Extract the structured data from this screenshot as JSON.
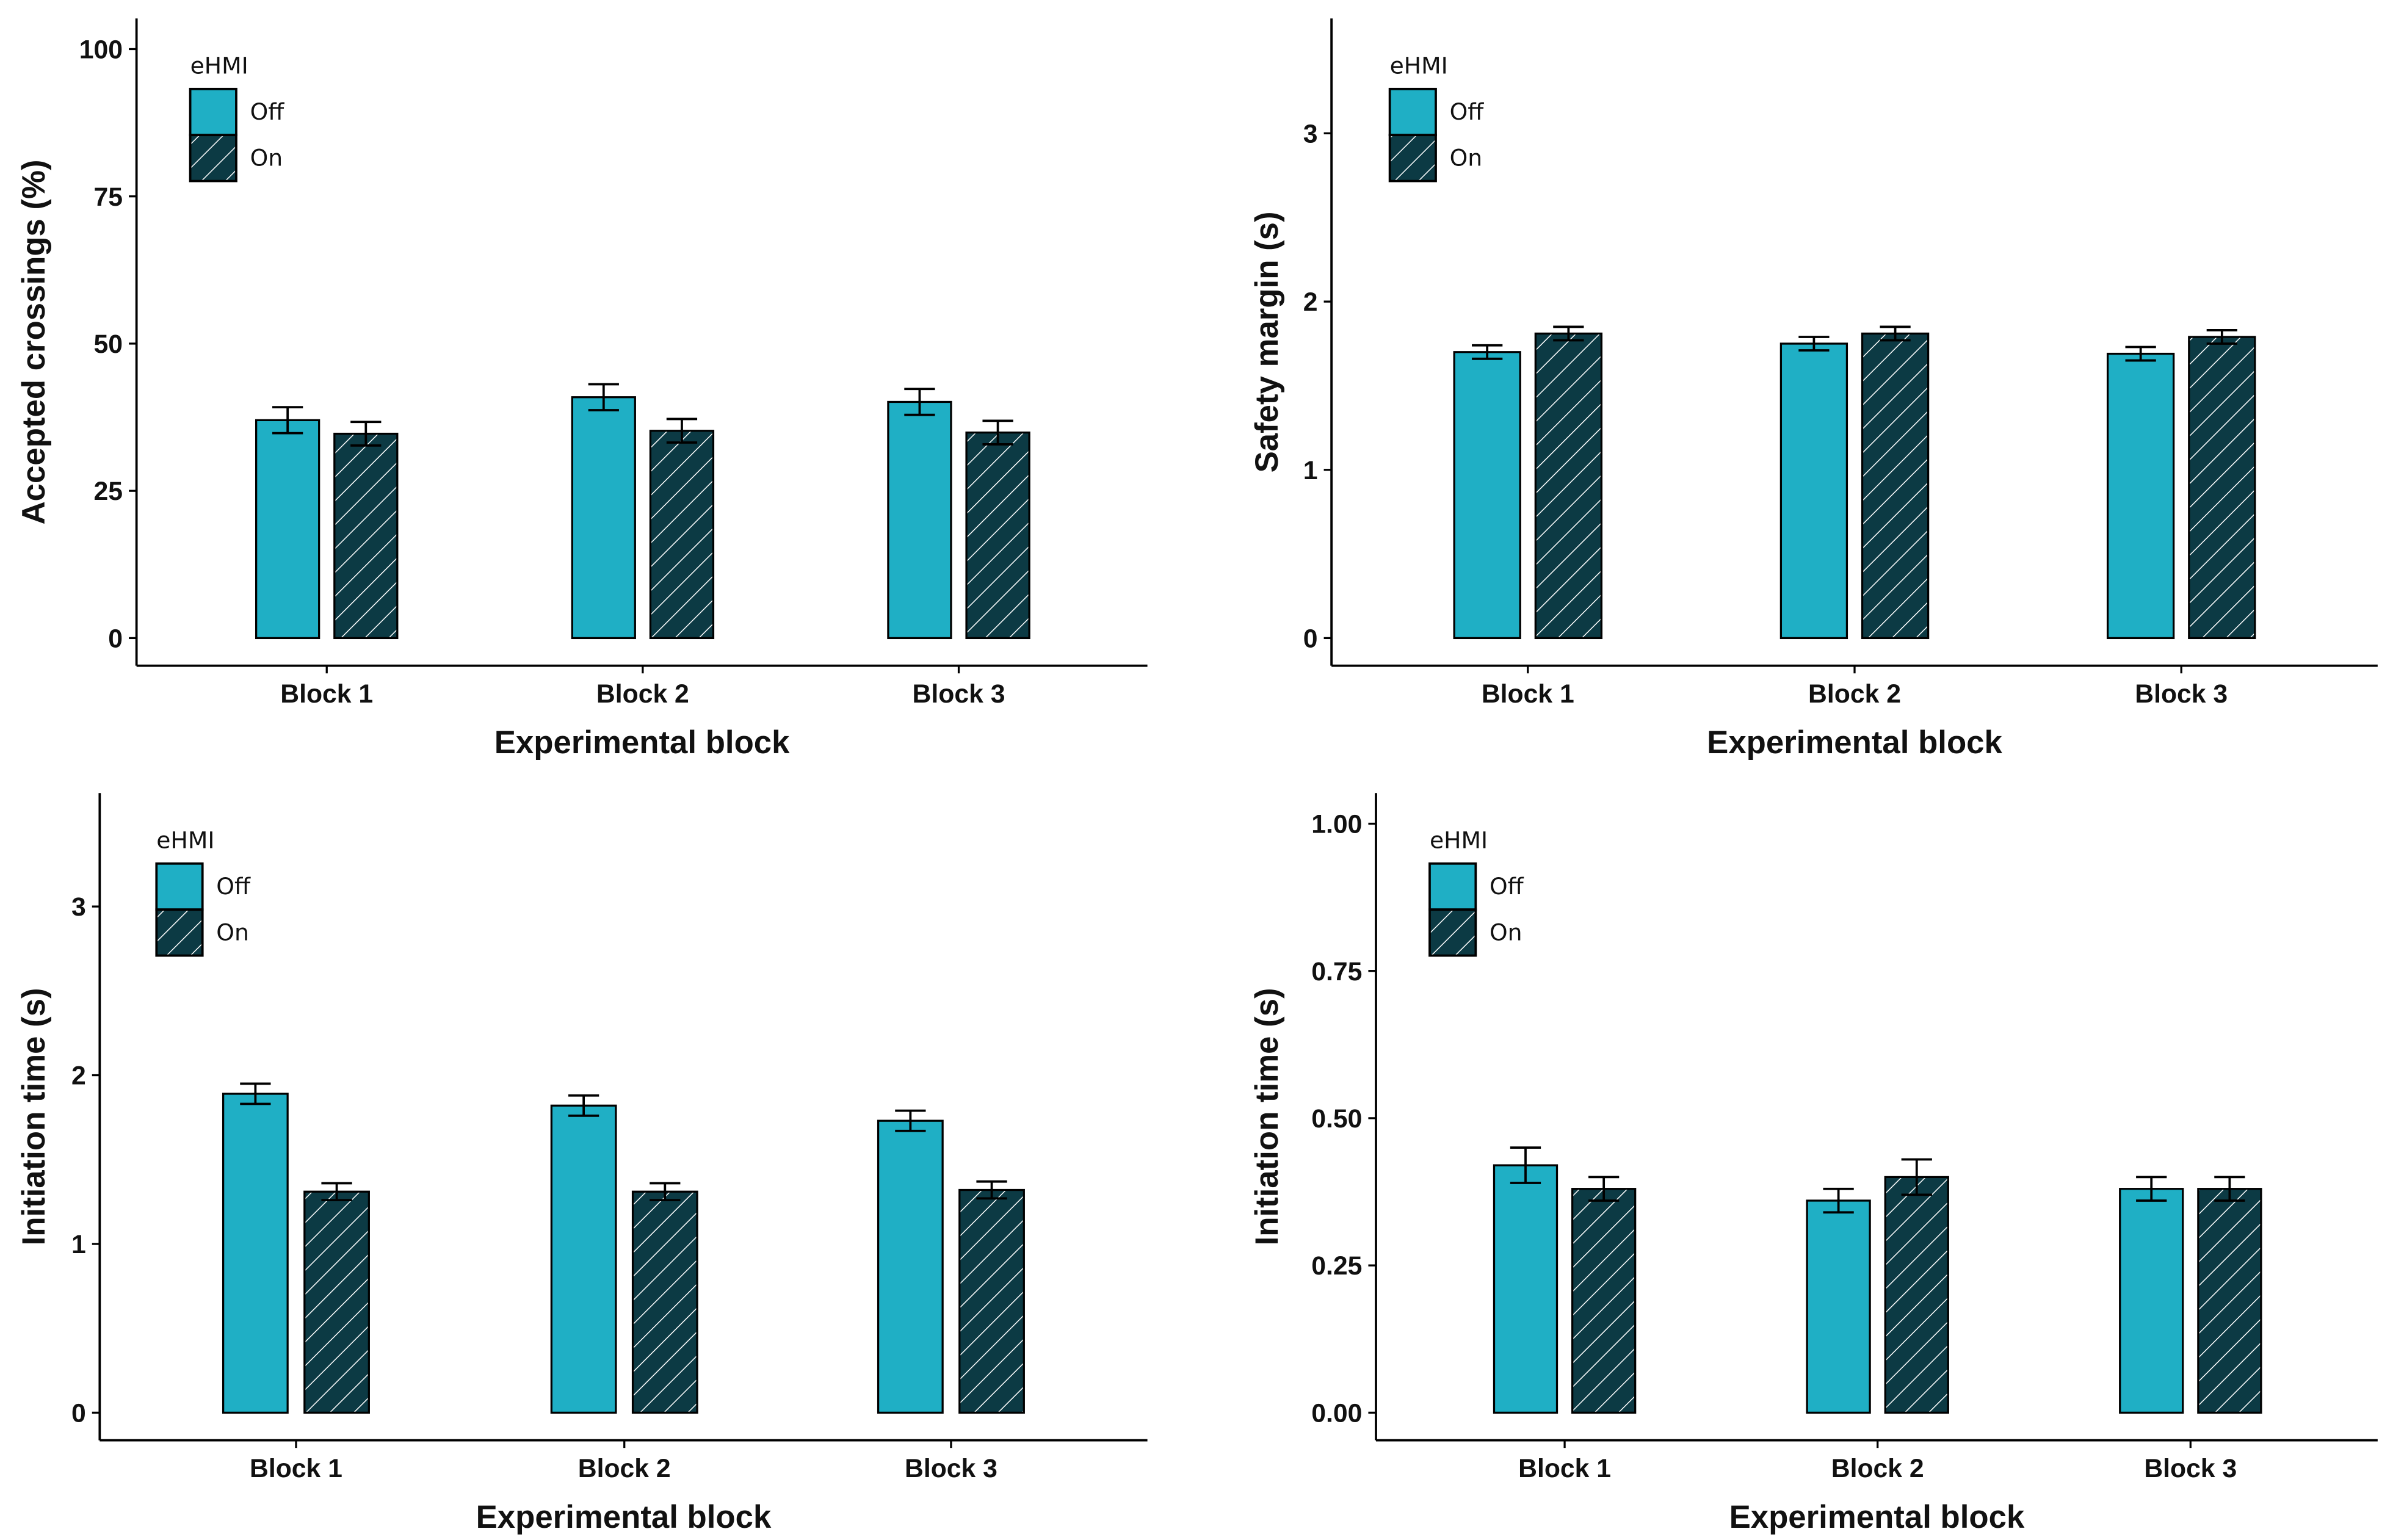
{
  "legend": {
    "title": "eHMI",
    "levels": [
      "Off",
      "On"
    ]
  },
  "colors": {
    "off": "#1fafc5",
    "on": "#0c3a44",
    "hatch": "#ffffff",
    "outline": "#000000"
  },
  "chart_data": [
    {
      "type": "bar",
      "xlabel": "Experimental block",
      "ylabel": "Accepted crossings (%)",
      "categories": [
        "Block 1",
        "Block 2",
        "Block 3"
      ],
      "yticks": [
        0,
        25,
        50,
        75,
        100
      ],
      "ytick_labels": [
        "0",
        "25",
        "50",
        "75",
        "100"
      ],
      "ylim": [
        0,
        105
      ],
      "legend_position": "top-left",
      "series": [
        {
          "name": "Off",
          "values": [
            37.0,
            40.9,
            40.1
          ],
          "errors": [
            2.2,
            2.2,
            2.2
          ]
        },
        {
          "name": "On",
          "values": [
            34.7,
            35.2,
            34.9
          ],
          "errors": [
            2.0,
            2.0,
            2.0
          ]
        }
      ]
    },
    {
      "type": "bar",
      "xlabel": "Experimental block",
      "ylabel": "Safety margin (s)",
      "categories": [
        "Block 1",
        "Block 2",
        "Block 3"
      ],
      "yticks": [
        0,
        1,
        2,
        3
      ],
      "ytick_labels": [
        "0",
        "1",
        "2",
        "3"
      ],
      "ylim": [
        0,
        3.68
      ],
      "legend_position": "top-left",
      "series": [
        {
          "name": "Off",
          "values": [
            1.7,
            1.75,
            1.69
          ],
          "errors": [
            0.04,
            0.04,
            0.04
          ]
        },
        {
          "name": "On",
          "values": [
            1.81,
            1.81,
            1.79
          ],
          "errors": [
            0.04,
            0.04,
            0.04
          ]
        }
      ]
    },
    {
      "type": "bar",
      "xlabel": "Experimental block",
      "ylabel": "Initiation time (s)",
      "categories": [
        "Block 1",
        "Block 2",
        "Block 3"
      ],
      "yticks": [
        0,
        1,
        2,
        3
      ],
      "ytick_labels": [
        "0",
        "1",
        "2",
        "3"
      ],
      "ylim": [
        0,
        3.68
      ],
      "legend_position": "top-left",
      "series": [
        {
          "name": "Off",
          "values": [
            1.89,
            1.82,
            1.73
          ],
          "errors": [
            0.06,
            0.06,
            0.06
          ]
        },
        {
          "name": "On",
          "values": [
            1.31,
            1.31,
            1.32
          ],
          "errors": [
            0.05,
            0.05,
            0.05
          ]
        }
      ]
    },
    {
      "type": "bar",
      "xlabel": "Experimental block",
      "ylabel": "Initiation time (s)",
      "categories": [
        "Block 1",
        "Block 2",
        "Block 3"
      ],
      "yticks": [
        0,
        0.25,
        0.5,
        0.75,
        1.0
      ],
      "ytick_labels": [
        "0.00",
        "0.25",
        "0.50",
        "0.75",
        "1.00"
      ],
      "ylim": [
        0,
        1.05
      ],
      "legend_position": "top-left",
      "series": [
        {
          "name": "Off",
          "values": [
            0.42,
            0.36,
            0.38
          ],
          "errors": [
            0.03,
            0.02,
            0.02
          ]
        },
        {
          "name": "On",
          "values": [
            0.38,
            0.4,
            0.38
          ],
          "errors": [
            0.02,
            0.03,
            0.02
          ]
        }
      ]
    }
  ]
}
